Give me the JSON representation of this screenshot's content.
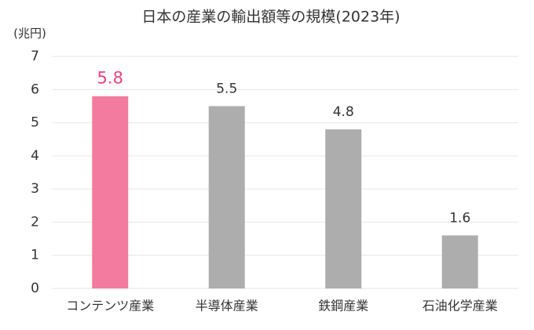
{
  "chart_data": {
    "type": "bar",
    "title": "日本の産業の輸出額等の規模(2023年)",
    "y_label": "(兆円)",
    "categories": [
      "コンテンツ産業",
      "半導体産業",
      "鉄鋼産業",
      "石油化学産業"
    ],
    "values": [
      5.8,
      5.5,
      4.8,
      1.6
    ],
    "colors": [
      "#f27b9f",
      "#adadad",
      "#adadad",
      "#adadad"
    ],
    "label_colors": [
      "#e8457a",
      "#333333",
      "#333333",
      "#333333"
    ],
    "ylim": [
      0,
      7
    ],
    "yticks": [
      0,
      1,
      2,
      3,
      4,
      5,
      6,
      7
    ],
    "grid": true
  }
}
